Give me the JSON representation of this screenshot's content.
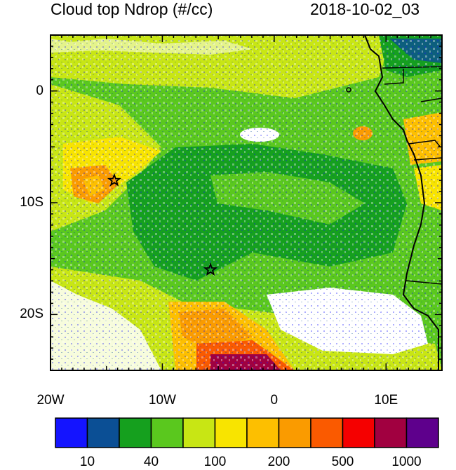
{
  "title_left": "Cloud top Ndrop (#/cc)",
  "title_right": "2018-10-02_03",
  "map": {
    "x_ticks": [
      "20W",
      "10W",
      "0",
      "10E"
    ],
    "y_ticks": [
      "0",
      "10S",
      "20S"
    ],
    "markers": [
      {
        "name": "star-marker-west",
        "lon": -14.3,
        "lat": -8.0
      },
      {
        "name": "star-marker-south",
        "lon": -5.7,
        "lat": -16.0
      }
    ]
  },
  "colorbar": {
    "colors": [
      "#1414ff",
      "#0b4f95",
      "#15a01e",
      "#5ac81e",
      "#c8e614",
      "#f8e400",
      "#fdbf00",
      "#fa9b00",
      "#fa5a00",
      "#f50000",
      "#a10040",
      "#5e008c"
    ],
    "labels": [
      "10",
      "40",
      "100",
      "200",
      "500",
      "1000"
    ]
  }
}
